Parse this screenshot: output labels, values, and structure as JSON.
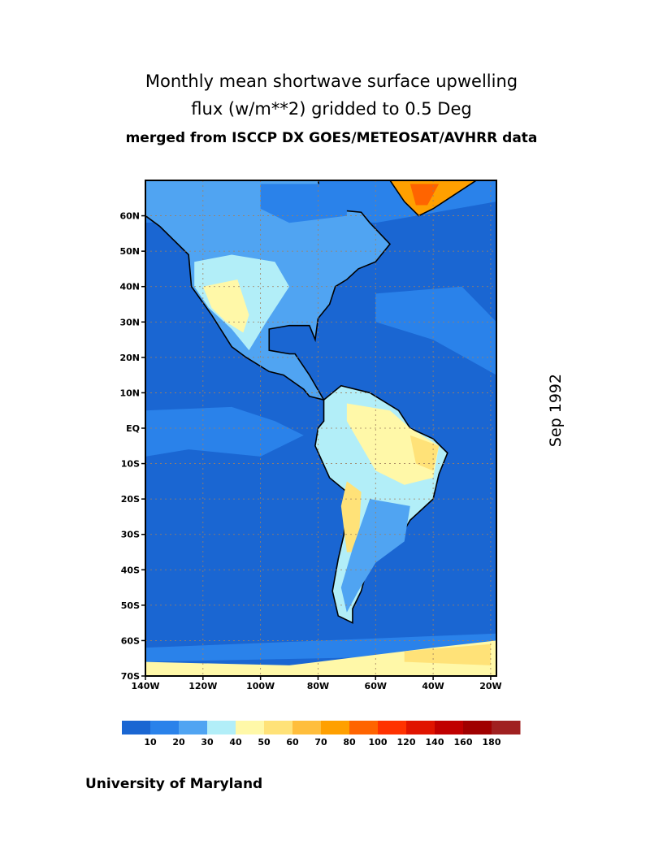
{
  "title": {
    "line1": "Monthly mean shortwave surface upwelling",
    "line2": "flux (w/m**2) gridded to 0.5 Deg",
    "line3": "merged from ISCCP DX GOES/METEOSAT/AVHRR data"
  },
  "date_label": "Sep 1992",
  "footer": "University of Maryland",
  "map": {
    "region_lon": [
      -140,
      -18
    ],
    "region_lat": [
      -70,
      70
    ],
    "lat_ticks": [
      "60N",
      "50N",
      "40N",
      "30N",
      "20N",
      "10N",
      "EQ",
      "10S",
      "20S",
      "30S",
      "40S",
      "50S",
      "60S",
      "70S"
    ],
    "lat_values": [
      60,
      50,
      40,
      30,
      20,
      10,
      0,
      -10,
      -20,
      -30,
      -40,
      -50,
      -60,
      -70
    ],
    "lon_ticks": [
      "140W",
      "120W",
      "100W",
      "80W",
      "60W",
      "40W",
      "20W"
    ],
    "lon_values": [
      -140,
      -120,
      -100,
      -80,
      -60,
      -40,
      -20
    ],
    "grid": true
  },
  "colorbar": {
    "labels": [
      "10",
      "20",
      "30",
      "40",
      "50",
      "60",
      "70",
      "80",
      "100",
      "120",
      "140",
      "160",
      "180"
    ],
    "colors": [
      "#1a66d2",
      "#2a82ea",
      "#50a4f2",
      "#b2eef8",
      "#fff8a8",
      "#ffe278",
      "#ffbe3c",
      "#ffa000",
      "#ff6400",
      "#ff3200",
      "#e01400",
      "#c00000",
      "#a00000",
      "#a02020"
    ]
  }
}
